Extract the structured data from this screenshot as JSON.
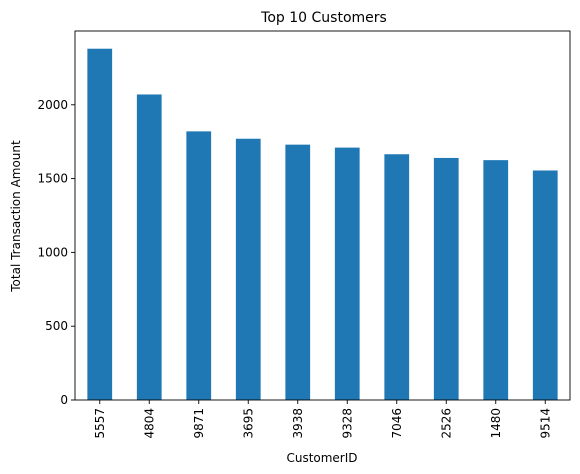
{
  "chart_data": {
    "type": "bar",
    "title": "Top 10 Customers",
    "xlabel": "CustomerID",
    "ylabel": "Total Transaction Amount",
    "categories": [
      "5557",
      "4804",
      "9871",
      "3695",
      "3938",
      "9328",
      "7046",
      "2526",
      "1480",
      "9514"
    ],
    "values": [
      2380,
      2070,
      1820,
      1770,
      1730,
      1710,
      1665,
      1640,
      1625,
      1555
    ],
    "ylim": [
      0,
      2500
    ],
    "yticks": [
      0,
      500,
      1000,
      1500,
      2000
    ],
    "grid": false,
    "legend": "none",
    "bar_color": "#1f77b4"
  }
}
